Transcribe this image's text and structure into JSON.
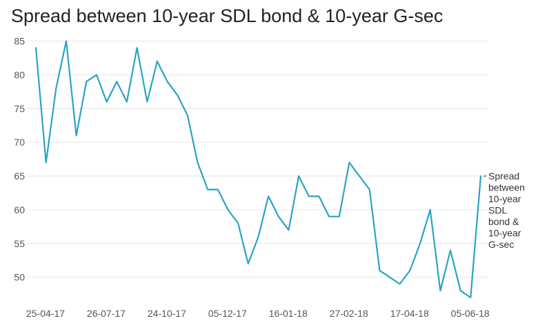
{
  "chart_data": {
    "type": "line",
    "title": "Spread between 10-year SDL bond & 10-year G-sec",
    "xlabel": "",
    "ylabel": "",
    "ylim": [
      47,
      87
    ],
    "y_ticks": [
      50,
      55,
      60,
      65,
      70,
      75,
      80,
      85
    ],
    "x_tick_labels": [
      "25-04-17",
      "26-07-17",
      "24-10-17",
      "05-12-17",
      "16-01-18",
      "27-02-18",
      "17-04-18",
      "05-06-18"
    ],
    "x_tick_index": [
      0,
      6,
      12,
      18,
      24,
      30,
      36,
      42
    ],
    "grid": true,
    "legend_position": "right-end",
    "series": [
      {
        "name": "Spread between 10-year SDL bond & 10-year G-sec",
        "color": "#2aa3c4",
        "values": [
          84,
          67,
          78,
          85,
          71,
          79,
          80,
          76,
          79,
          76,
          84,
          76,
          82,
          79,
          77,
          74,
          67,
          63,
          63,
          60,
          58,
          52,
          56,
          62,
          59,
          57,
          65,
          62,
          62,
          59,
          59,
          67,
          65,
          63,
          51,
          50,
          49,
          51,
          55,
          60,
          48,
          54,
          48,
          47,
          65
        ]
      }
    ],
    "legend_lines": [
      "Spread",
      "between",
      "10-year",
      "SDL",
      "bond &",
      "10-year",
      "G-sec"
    ]
  }
}
